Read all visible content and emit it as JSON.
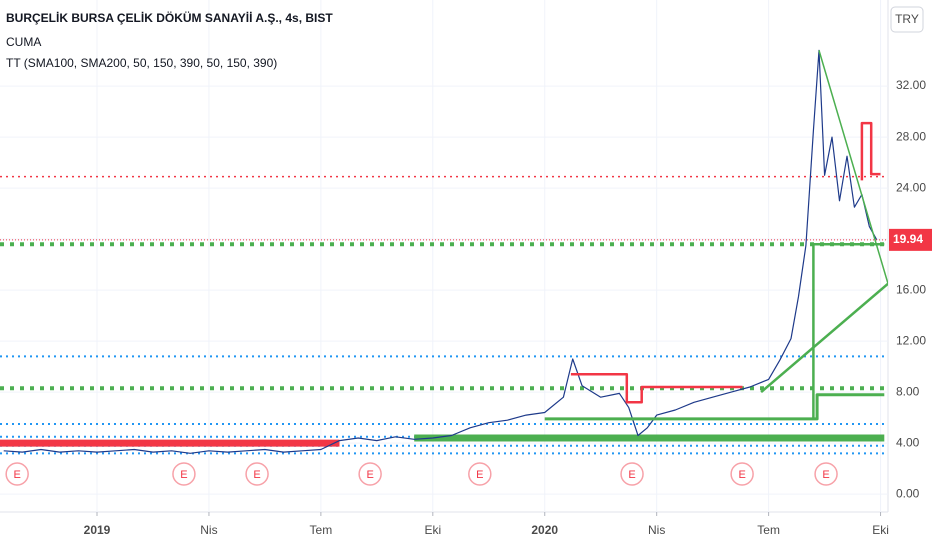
{
  "chart_data": {
    "type": "line",
    "title": "BURÇELİK BURSA ÇELİK DÖKÜM SANAYİİ A.Ş., 4s, BIST",
    "annotations": [
      "CUMA",
      "TT (SMA100, SMA200, 50, 150, 390, 50, 150, 390)"
    ],
    "currency": "TRY",
    "last_price": {
      "value": 19.94,
      "label": "19.94",
      "color": "#f23645"
    },
    "xlim": [
      -2.6,
      21.2
    ],
    "xticks": [
      {
        "value": 0,
        "label": "2019"
      },
      {
        "value": 3,
        "label": "Nis"
      },
      {
        "value": 6,
        "label": "Tem"
      },
      {
        "value": 9,
        "label": "Eki"
      },
      {
        "value": 12,
        "label": "2020"
      },
      {
        "value": 15,
        "label": "Nis"
      },
      {
        "value": 18,
        "label": "Tem"
      },
      {
        "value": 21,
        "label": "Eki"
      }
    ],
    "ylim": [
      -1.4,
      38.75
    ],
    "yticks": [
      {
        "value": 0,
        "label": "0.00"
      },
      {
        "value": 4,
        "label": "4.00"
      },
      {
        "value": 8,
        "label": "8.00"
      },
      {
        "value": 12,
        "label": "12.00"
      },
      {
        "value": 16,
        "label": "16.00"
      },
      {
        "value": 20,
        "label": "20.00"
      },
      {
        "value": 24,
        "label": "24.00"
      },
      {
        "value": 28,
        "label": "28.00"
      },
      {
        "value": 32,
        "label": "32.00"
      }
    ],
    "grid": true,
    "hlines": [
      {
        "value": 24.9,
        "color": "#f23645",
        "width": 1.5,
        "dash": "2 4"
      },
      {
        "value": 19.6,
        "color": "#4caf50",
        "width": 4,
        "dash": "4 6"
      },
      {
        "value": 10.8,
        "color": "#2196f3",
        "width": 2,
        "dash": "2 4"
      },
      {
        "value": 8.3,
        "color": "#4caf50",
        "width": 4,
        "dash": "4 6"
      },
      {
        "value": 5.5,
        "color": "#2196f3",
        "width": 2,
        "dash": "2 4"
      },
      {
        "value": 4.5,
        "color": "#2196f3",
        "width": 2,
        "dash": "2 4"
      },
      {
        "value": 3.8,
        "color": "#2196f3",
        "width": 2,
        "dash": "2 4"
      },
      {
        "value": 3.2,
        "color": "#2196f3",
        "width": 2,
        "dash": "2 4"
      }
    ],
    "series": [
      {
        "color": "#f23645",
        "width": 7,
        "x": [
          -2.6,
          6.5
        ],
        "values": [
          4.0,
          4.0
        ]
      },
      {
        "color": "#4caf50",
        "width": 7,
        "x": [
          8.5,
          21.1
        ],
        "values": [
          4.4,
          4.4
        ]
      },
      {
        "color": "#1e3a8a",
        "width": 1.2,
        "x": [
          -2.5,
          -2,
          -1.5,
          -1,
          -0.5,
          0,
          0.5,
          1,
          1.5,
          2,
          2.5,
          3,
          3.5,
          4,
          4.5,
          5,
          5.5,
          6,
          6.5,
          7,
          7.5,
          8,
          8.5,
          9,
          9.5,
          10,
          10.5,
          11,
          11.5,
          12,
          12.5,
          12.75,
          13,
          13.5,
          14,
          14.25,
          14.5,
          14.75,
          15,
          15.5,
          16,
          16.5,
          17,
          17.5,
          18,
          18.3,
          18.6,
          18.8,
          19,
          19.2,
          19.35,
          19.5,
          19.7,
          19.9,
          20.1,
          20.3,
          20.5,
          20.7,
          20.9
        ],
        "values": [
          3.4,
          3.3,
          3.5,
          3.3,
          3.4,
          3.3,
          3.4,
          3.5,
          3.3,
          3.4,
          3.2,
          3.4,
          3.3,
          3.4,
          3.5,
          3.3,
          3.4,
          3.5,
          4.2,
          4.4,
          4.2,
          4.5,
          4.3,
          4.4,
          4.6,
          5.2,
          5.6,
          5.8,
          6.2,
          6.4,
          7.6,
          10.6,
          8.5,
          7.6,
          7.9,
          6.8,
          4.6,
          5.2,
          6.2,
          6.6,
          7.2,
          7.6,
          8.0,
          8.4,
          9.0,
          10.5,
          12.2,
          15.5,
          19.5,
          28.5,
          34.8,
          25.0,
          28.0,
          23.0,
          26.5,
          22.5,
          23.5,
          21.0,
          19.94
        ]
      },
      {
        "color": "#4caf50",
        "width": 3,
        "x": [
          12.0,
          19.3,
          19.3,
          21.1
        ],
        "values": [
          5.9,
          5.9,
          7.8,
          7.8
        ]
      },
      {
        "color": "#4caf50",
        "width": 2.5,
        "x": [
          19.2,
          19.2,
          21.1
        ],
        "values": [
          5.9,
          19.6,
          19.6
        ]
      },
      {
        "color": "#f23645",
        "width": 2.5,
        "x": [
          12.7,
          14.2,
          14.2,
          14.6,
          14.6,
          17.3
        ],
        "values": [
          9.4,
          9.4,
          7.2,
          7.2,
          8.4,
          8.4
        ]
      },
      {
        "color": "#f23645",
        "width": 2.5,
        "x": [
          20.5,
          20.5,
          20.75,
          20.75,
          21.0
        ],
        "values": [
          24.6,
          29.1,
          29.1,
          25.1,
          25.1
        ]
      },
      {
        "color": "#4caf50",
        "width": 1.5,
        "x": [
          19.35,
          21.2
        ],
        "values": [
          34.8,
          16.5
        ]
      },
      {
        "color": "#4caf50",
        "width": 2.5,
        "x": [
          17.8,
          21.2
        ],
        "values": [
          8.0,
          16.5
        ]
      }
    ],
    "events": [
      {
        "x": -2.14,
        "label": "E"
      },
      {
        "x": 2.33,
        "label": "E"
      },
      {
        "x": 4.29,
        "label": "E"
      },
      {
        "x": 7.32,
        "label": "E"
      },
      {
        "x": 10.26,
        "label": "E"
      },
      {
        "x": 14.34,
        "label": "E"
      },
      {
        "x": 17.29,
        "label": "E"
      },
      {
        "x": 19.54,
        "label": "E"
      }
    ]
  }
}
